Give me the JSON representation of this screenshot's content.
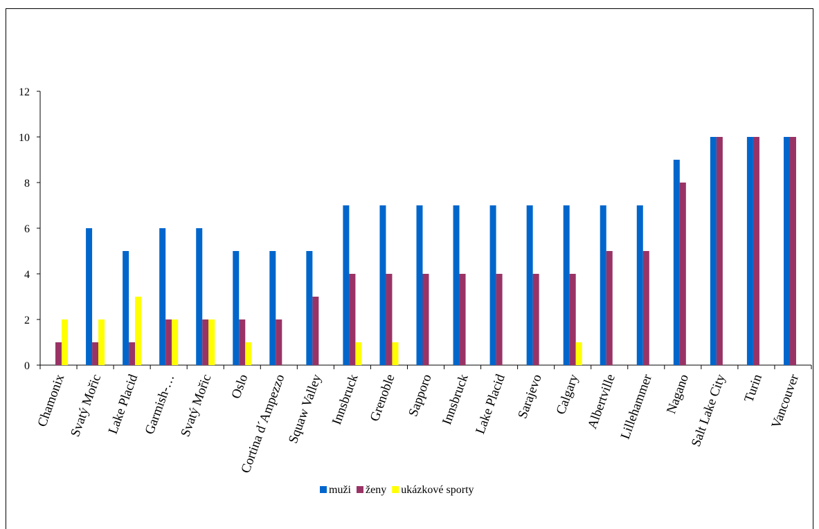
{
  "chart_data": {
    "type": "bar",
    "title": "",
    "xlabel": "",
    "ylabel": "",
    "ylim": [
      0,
      12
    ],
    "yticks": [
      0,
      2,
      4,
      6,
      8,
      10,
      12
    ],
    "grid": false,
    "legend_position": "bottom",
    "categories": [
      "Chamonix",
      "Svatý Mořic",
      "Lake Placid",
      "Garmish-…",
      "Svatý Mořic",
      "Oslo",
      "Cortina d´Ampezzo",
      "Squaw Valley",
      "Innsbruck",
      "Grenoble",
      "Sapporo",
      "Innsbruck",
      "Lake Placid",
      "Sarajevo",
      "Calgary",
      "Albertville",
      "Lillehammer",
      "Nagano",
      "Salt Lake City",
      "Turin",
      "Vancouver"
    ],
    "series": [
      {
        "name": "muži",
        "color": "#0066CC",
        "values": [
          0,
          6,
          5,
          6,
          6,
          5,
          5,
          5,
          7,
          7,
          7,
          7,
          7,
          7,
          7,
          7,
          7,
          9,
          10,
          10,
          10
        ]
      },
      {
        "name": "ženy",
        "color": "#993366",
        "values": [
          1,
          1,
          1,
          2,
          2,
          2,
          2,
          3,
          4,
          4,
          4,
          4,
          4,
          4,
          4,
          5,
          5,
          8,
          10,
          10,
          10
        ]
      },
      {
        "name": "ukázkové sporty",
        "color": "#FFFF00",
        "values": [
          2,
          2,
          3,
          2,
          2,
          1,
          0,
          0,
          1,
          1,
          0,
          0,
          0,
          0,
          1,
          0,
          0,
          0,
          0,
          0,
          0
        ]
      }
    ]
  }
}
